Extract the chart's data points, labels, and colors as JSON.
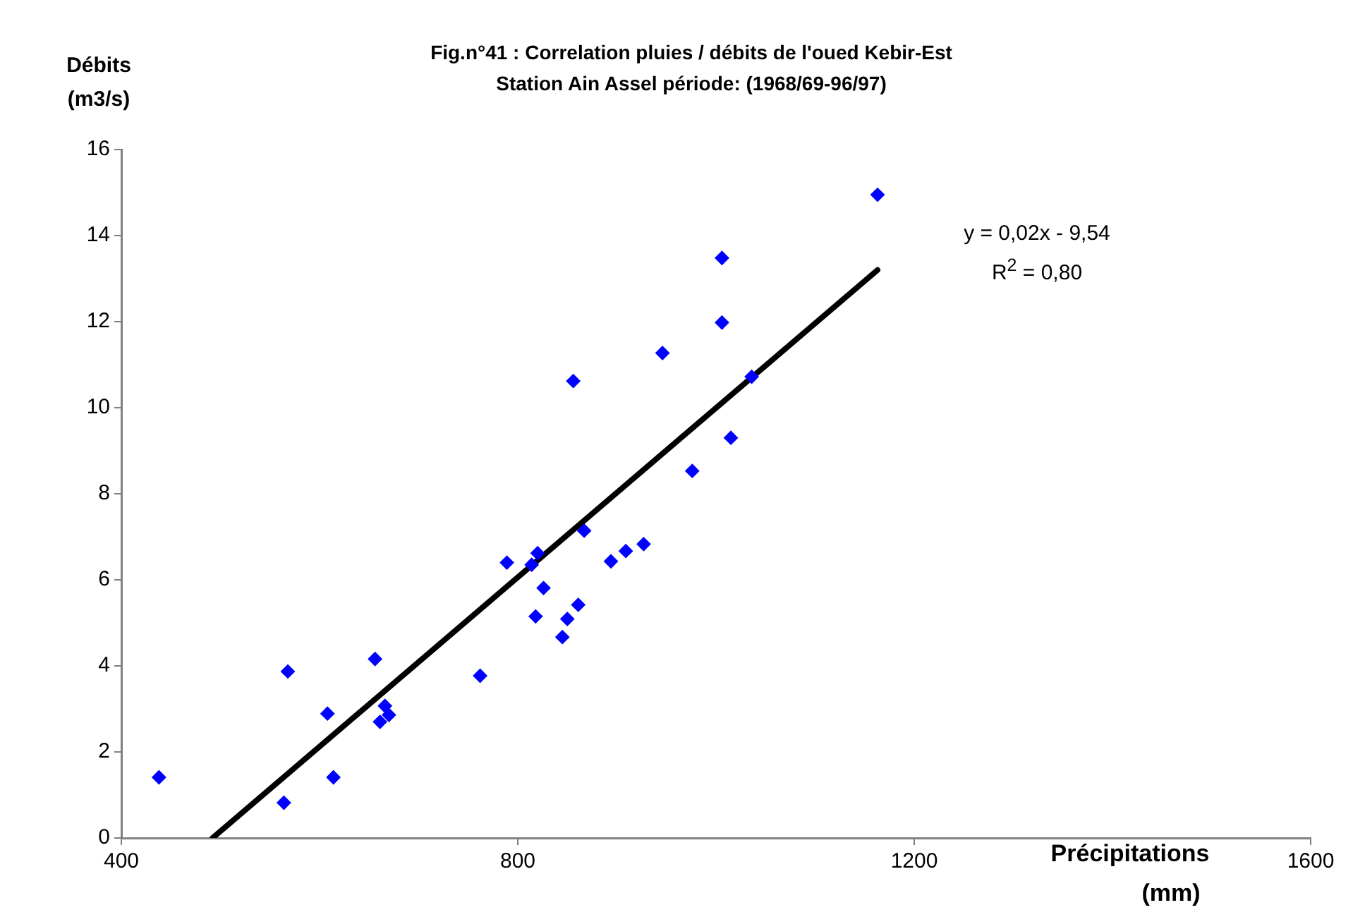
{
  "chart_data": {
    "type": "scatter",
    "title": "Fig.n°41 : Correlation pluies / débits de l'oued Kebir-Est",
    "subtitle": "Station Ain Assel période: (1968/69-96/97)",
    "xlabel": "Précipitations (mm)",
    "ylabel": "Débits (m3/s)",
    "xlim": [
      400,
      1600
    ],
    "xticks": [
      400,
      800,
      1200,
      1600
    ],
    "ylim": [
      0,
      16
    ],
    "yticks": [
      0,
      2,
      4,
      6,
      8,
      10,
      12,
      14,
      16
    ],
    "grid": false,
    "marker": "diamond",
    "annotations": [
      "y = 0,02x - 9,54",
      "R$^{2}$ = 0,80"
    ],
    "series": [
      {
        "color": "#0000ff",
        "x": [
          438,
          564,
          568,
          608,
          614,
          656,
          661,
          666,
          670,
          762,
          789,
          814,
          820,
          818,
          826,
          845,
          850,
          861,
          856,
          867,
          894,
          909,
          927,
          946,
          976,
          1006,
          1006,
          1015,
          1036,
          1163
        ],
        "values": [
          1.41,
          0.82,
          3.87,
          2.89,
          1.41,
          4.16,
          2.7,
          3.07,
          2.86,
          3.77,
          6.4,
          6.35,
          6.62,
          5.15,
          5.81,
          4.67,
          5.09,
          5.42,
          10.62,
          7.14,
          6.43,
          6.67,
          6.83,
          11.27,
          8.53,
          13.48,
          11.98,
          9.3,
          10.72,
          14.95
        ]
      },
      {
        "type": "line",
        "color": "#000000",
        "marker": "none",
        "x": [
          492,
          1163
        ],
        "values": [
          0,
          13.2
        ]
      }
    ]
  }
}
